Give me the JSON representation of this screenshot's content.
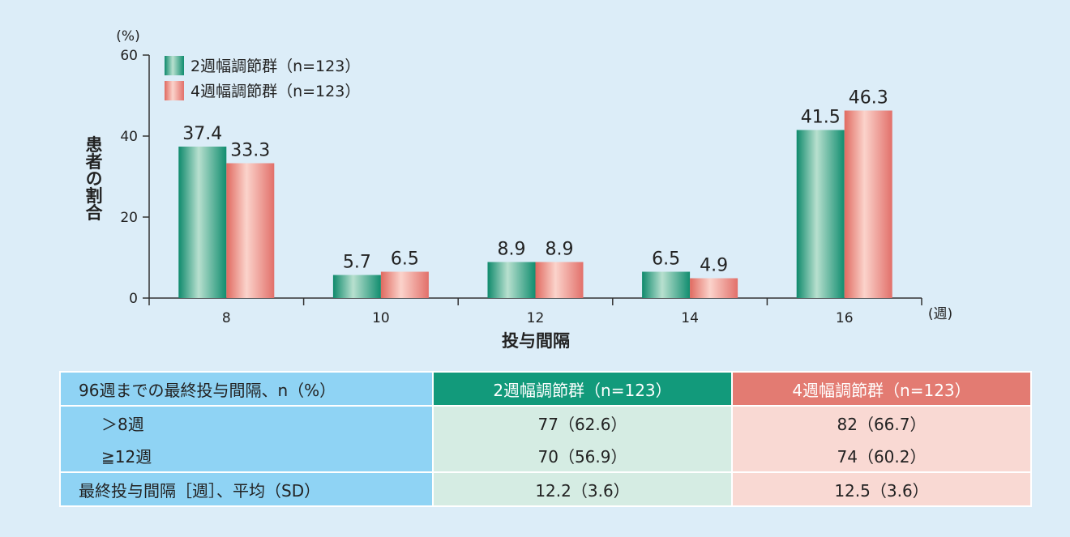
{
  "chart_data": {
    "type": "bar",
    "categories": [
      "8",
      "10",
      "12",
      "14",
      "16"
    ],
    "series": [
      {
        "name": "2週幅調節群（n=123）",
        "values": [
          37.4,
          5.7,
          8.9,
          6.5,
          41.5
        ],
        "color": "#1a9a7c"
      },
      {
        "name": "4週幅調節群（n=123）",
        "values": [
          33.3,
          6.5,
          8.9,
          4.9,
          46.3
        ],
        "color": "#e8776d"
      }
    ],
    "data_labels": [
      [
        "37.4",
        "5.7",
        "8.9",
        "6.5",
        "41.5"
      ],
      [
        "33.3",
        "6.5",
        "8.9",
        "4.9",
        "46.3"
      ]
    ],
    "ylim": [
      0,
      60
    ],
    "yticks": [
      "0",
      "20",
      "40",
      "60"
    ],
    "yunit": "(%)",
    "xunit": "(週)",
    "ylabel": "患者の割合",
    "xlabel": "投与間隔",
    "legend_position": "top-left"
  },
  "table": {
    "header": {
      "label": "96週までの最終投与間隔、n（%）",
      "group2": "2週幅調節群（n=123）",
      "group4": "4週幅調節群（n=123）"
    },
    "rows": [
      {
        "label": "＞8週",
        "group2": "77（62.6）",
        "group4": "82（66.7）"
      },
      {
        "label": "≧12週",
        "group2": "70（56.9）",
        "group4": "74（60.2）"
      },
      {
        "label": "最終投与間隔［週］、平均（SD）",
        "group2": "12.2（3.6）",
        "group4": "12.5（3.6）"
      }
    ]
  }
}
